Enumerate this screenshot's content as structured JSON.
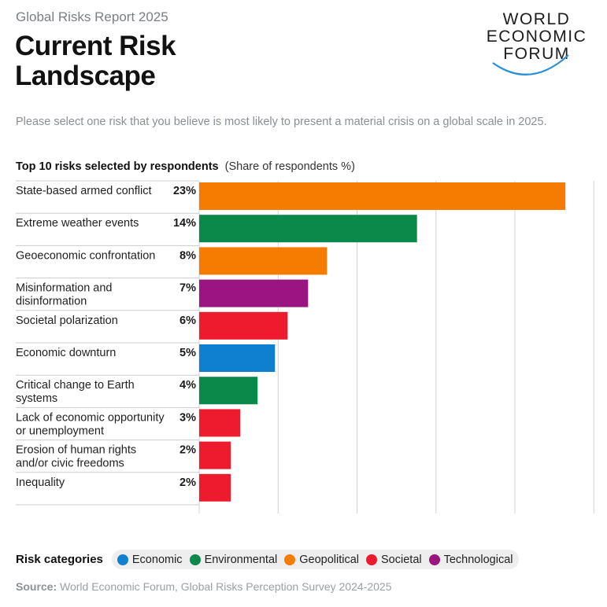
{
  "header": {
    "report": "Global Risks Report 2025",
    "title_line1": "Current Risk",
    "title_line2": "Landscape"
  },
  "logo": {
    "line1": "WORLD",
    "line2": "ECONOMIC",
    "line3": "FORUM"
  },
  "question": "Please select one risk that you believe is most likely to present a material crisis on a global scale in 2025.",
  "chart_heading": {
    "bold": "Top 10 risks selected by respondents",
    "muted": "(Share of respondents %)"
  },
  "colors": {
    "Economic": "#0f7fd0",
    "Environmental": "#0a8a4a",
    "Geopolitical": "#f57c00",
    "Societal": "#ee1b2e",
    "Technological": "#9a157f",
    "grid": "#cfd3d7",
    "separator": "#c8ccd0"
  },
  "chart_data": {
    "type": "bar",
    "orientation": "horizontal",
    "title": "Top 10 risks selected by respondents",
    "subtitle": "(Share of respondents %)",
    "unit": "%",
    "xlim": [
      0,
      25
    ],
    "grid": true,
    "categories": [
      [
        "State-based armed conflict"
      ],
      [
        "Extreme weather events"
      ],
      [
        "Geoeconomic confrontation"
      ],
      [
        "Misinformation and",
        "disinformation"
      ],
      [
        "Societal polarization"
      ],
      [
        "Economic downturn"
      ],
      [
        "Critical change to Earth",
        "systems"
      ],
      [
        "Lack of economic opportunity",
        "or unemployment"
      ],
      [
        "Erosion of human rights",
        "and/or civic freedoms"
      ],
      [
        "Inequality"
      ]
    ],
    "values": [
      23,
      14,
      8,
      7,
      6,
      5,
      4,
      3,
      2,
      2
    ],
    "value_labels": [
      "23%",
      "14%",
      "8%",
      "7%",
      "6%",
      "5%",
      "4%",
      "3%",
      "2%",
      "2%"
    ],
    "bar_categories": [
      "Geopolitical",
      "Environmental",
      "Geopolitical",
      "Technological",
      "Societal",
      "Economic",
      "Environmental",
      "Societal",
      "Societal",
      "Societal"
    ],
    "bar_values_exact": [
      23.2,
      13.8,
      8.1,
      6.9,
      5.6,
      4.8,
      3.7,
      2.6,
      2.0,
      2.0
    ]
  },
  "legend": {
    "title": "Risk categories",
    "items": [
      "Economic",
      "Environmental",
      "Geopolitical",
      "Societal",
      "Technological"
    ]
  },
  "source": {
    "label": "Source:",
    "text": "World Economic Forum, Global Risks Perception Survey 2024-2025"
  }
}
